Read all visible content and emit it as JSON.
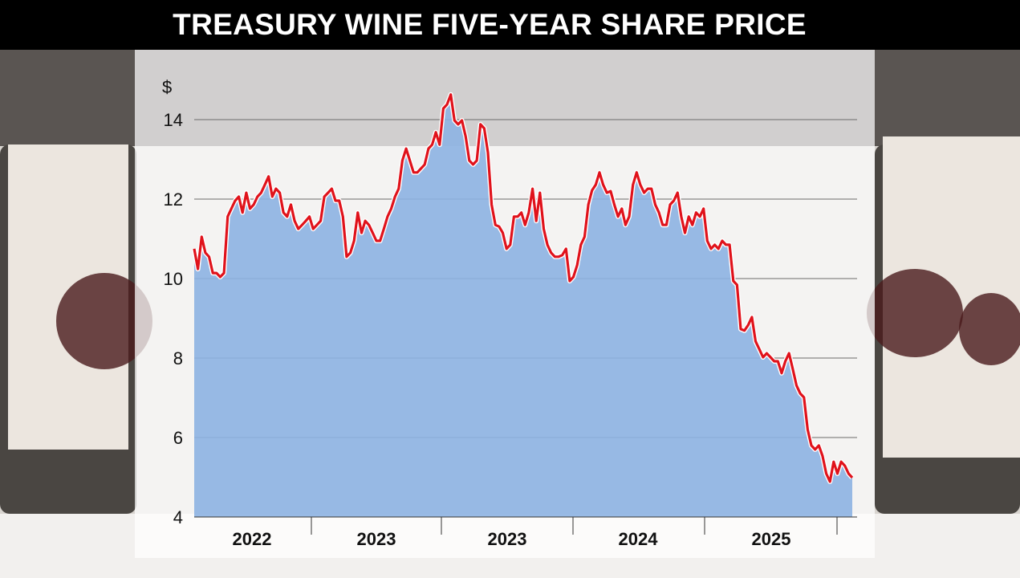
{
  "title": "TREASURY WINE FIVE-YEAR SHARE PRICE",
  "chart_data": {
    "type": "area",
    "title": "TREASURY WINE FIVE-YEAR SHARE PRICE",
    "ylabel": "$",
    "xlabel": "",
    "ylim": [
      4,
      14.8
    ],
    "yticks": [
      4,
      6,
      8,
      10,
      12,
      14
    ],
    "ytick_labels": [
      "4",
      "6",
      "8",
      "10",
      "12",
      "14"
    ],
    "xtick_labels": [
      "2022",
      "2023",
      "2023",
      "2024",
      "2025"
    ],
    "grid": true,
    "colors": {
      "line": "#e0121b",
      "fill": "#8db3e2",
      "title_bar": "#000000"
    },
    "series": [
      {
        "name": "Share price",
        "values": [
          10.75,
          10.24,
          11.05,
          10.65,
          10.55,
          10.14,
          10.14,
          10.04,
          10.14,
          11.56,
          11.76,
          11.96,
          12.06,
          11.66,
          12.16,
          11.76,
          11.86,
          12.06,
          12.16,
          12.36,
          12.57,
          12.06,
          12.26,
          12.16,
          11.66,
          11.56,
          11.86,
          11.45,
          11.25,
          11.35,
          11.45,
          11.56,
          11.25,
          11.35,
          11.45,
          12.06,
          12.16,
          12.26,
          11.96,
          11.96,
          11.56,
          10.55,
          10.65,
          10.95,
          11.66,
          11.15,
          11.45,
          11.35,
          11.15,
          10.95,
          10.95,
          11.25,
          11.56,
          11.76,
          12.06,
          12.26,
          12.97,
          13.27,
          12.97,
          12.67,
          12.67,
          12.77,
          12.87,
          13.27,
          13.37,
          13.68,
          13.37,
          14.28,
          14.38,
          14.63,
          13.98,
          13.88,
          13.98,
          13.58,
          12.97,
          12.87,
          12.97,
          13.88,
          13.78,
          13.17,
          11.86,
          11.35,
          11.31,
          11.15,
          10.75,
          10.85,
          11.56,
          11.56,
          11.66,
          11.35,
          11.66,
          12.26,
          11.45,
          12.16,
          11.25,
          10.85,
          10.65,
          10.55,
          10.55,
          10.59,
          10.75,
          9.94,
          10.04,
          10.34,
          10.85,
          11.05,
          11.86,
          12.22,
          12.36,
          12.67,
          12.36,
          12.16,
          12.2,
          11.86,
          11.56,
          11.76,
          11.35,
          11.56,
          12.36,
          12.67,
          12.36,
          12.16,
          12.26,
          12.26,
          11.86,
          11.66,
          11.35,
          11.35,
          11.86,
          11.96,
          12.16,
          11.56,
          11.15,
          11.56,
          11.35,
          11.66,
          11.56,
          11.76,
          10.95,
          10.75,
          10.85,
          10.75,
          10.95,
          10.85,
          10.85,
          9.94,
          9.84,
          8.73,
          8.69,
          8.83,
          9.03,
          8.42,
          8.22,
          8.02,
          8.12,
          8.02,
          7.92,
          7.92,
          7.62,
          7.92,
          8.12,
          7.72,
          7.31,
          7.11,
          7.01,
          6.2,
          5.8,
          5.7,
          5.8,
          5.54,
          5.09,
          4.89,
          5.39,
          5.09,
          5.39,
          5.29,
          5.09,
          4.99
        ]
      }
    ]
  }
}
